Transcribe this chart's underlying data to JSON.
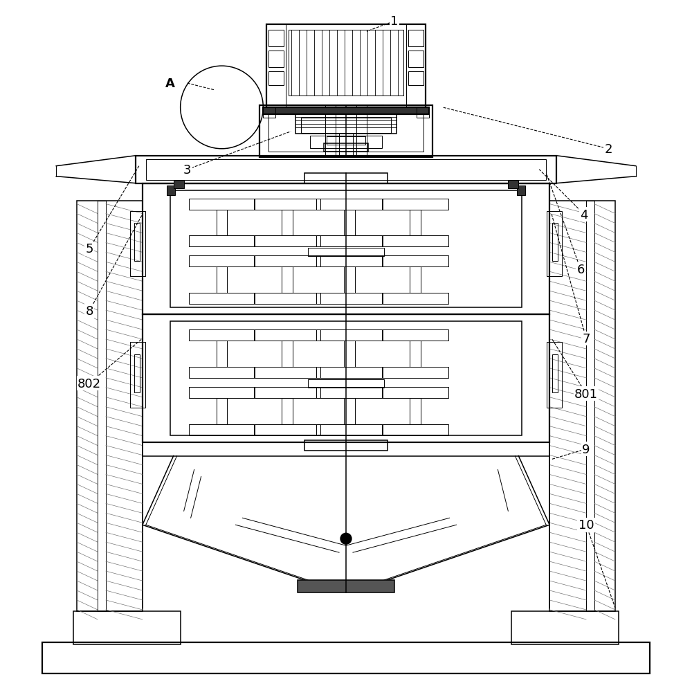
{
  "bg_color": "#ffffff",
  "line_color": "#000000",
  "label_color": "#000000",
  "figsize": [
    10.0,
    9.95
  ],
  "dpi": 100
}
